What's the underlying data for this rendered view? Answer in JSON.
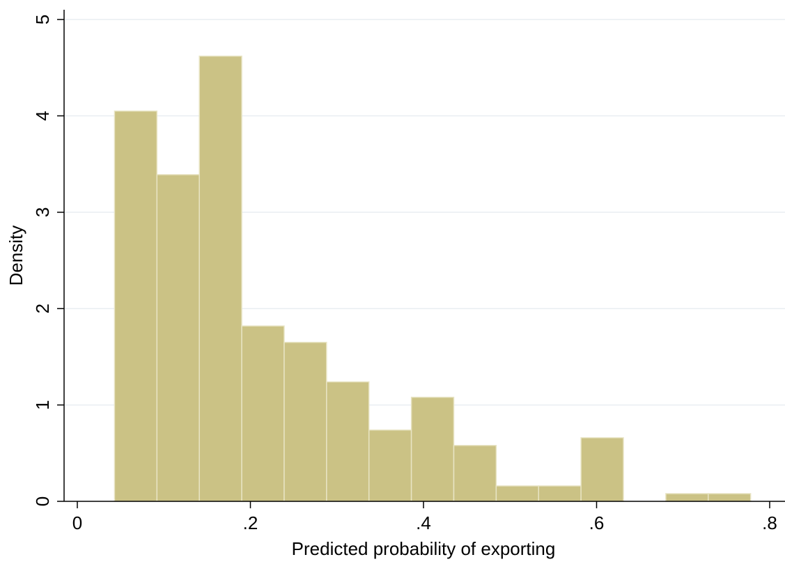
{
  "chart_data": {
    "type": "bar",
    "title": "",
    "xlabel": "Predicted probability of exporting",
    "ylabel": "Density",
    "xlim": [
      0,
      0.8
    ],
    "ylim": [
      0,
      5
    ],
    "grid": true,
    "bin_width": 0.049,
    "bins": [
      {
        "x_start": 0.043,
        "x_end": 0.092,
        "density": 4.05
      },
      {
        "x_start": 0.092,
        "x_end": 0.141,
        "density": 3.39
      },
      {
        "x_start": 0.141,
        "x_end": 0.19,
        "density": 4.62
      },
      {
        "x_start": 0.19,
        "x_end": 0.239,
        "density": 1.82
      },
      {
        "x_start": 0.239,
        "x_end": 0.288,
        "density": 1.65
      },
      {
        "x_start": 0.288,
        "x_end": 0.337,
        "density": 1.24
      },
      {
        "x_start": 0.337,
        "x_end": 0.386,
        "density": 0.74
      },
      {
        "x_start": 0.386,
        "x_end": 0.435,
        "density": 1.08
      },
      {
        "x_start": 0.435,
        "x_end": 0.484,
        "density": 0.58
      },
      {
        "x_start": 0.484,
        "x_end": 0.533,
        "density": 0.16
      },
      {
        "x_start": 0.533,
        "x_end": 0.582,
        "density": 0.16
      },
      {
        "x_start": 0.582,
        "x_end": 0.631,
        "density": 0.66
      },
      {
        "x_start": 0.631,
        "x_end": 0.68,
        "density": 0
      },
      {
        "x_start": 0.68,
        "x_end": 0.729,
        "density": 0.08
      },
      {
        "x_start": 0.729,
        "x_end": 0.778,
        "density": 0.08
      }
    ],
    "x_ticks": [
      {
        "value": 0,
        "label": "0"
      },
      {
        "value": 0.2,
        "label": ".2"
      },
      {
        "value": 0.4,
        "label": ".4"
      },
      {
        "value": 0.6,
        "label": ".6"
      },
      {
        "value": 0.8,
        "label": ".8"
      }
    ],
    "y_ticks": [
      {
        "value": 0,
        "label": "0"
      },
      {
        "value": 1,
        "label": "1"
      },
      {
        "value": 2,
        "label": "2"
      },
      {
        "value": 3,
        "label": "3"
      },
      {
        "value": 4,
        "label": "4"
      },
      {
        "value": 5,
        "label": "5"
      }
    ],
    "colors": {
      "bar_fill": "#cbc285",
      "bar_edge": "#e8e4c4",
      "grid": "#e9eef2",
      "axis": "#000000"
    }
  }
}
